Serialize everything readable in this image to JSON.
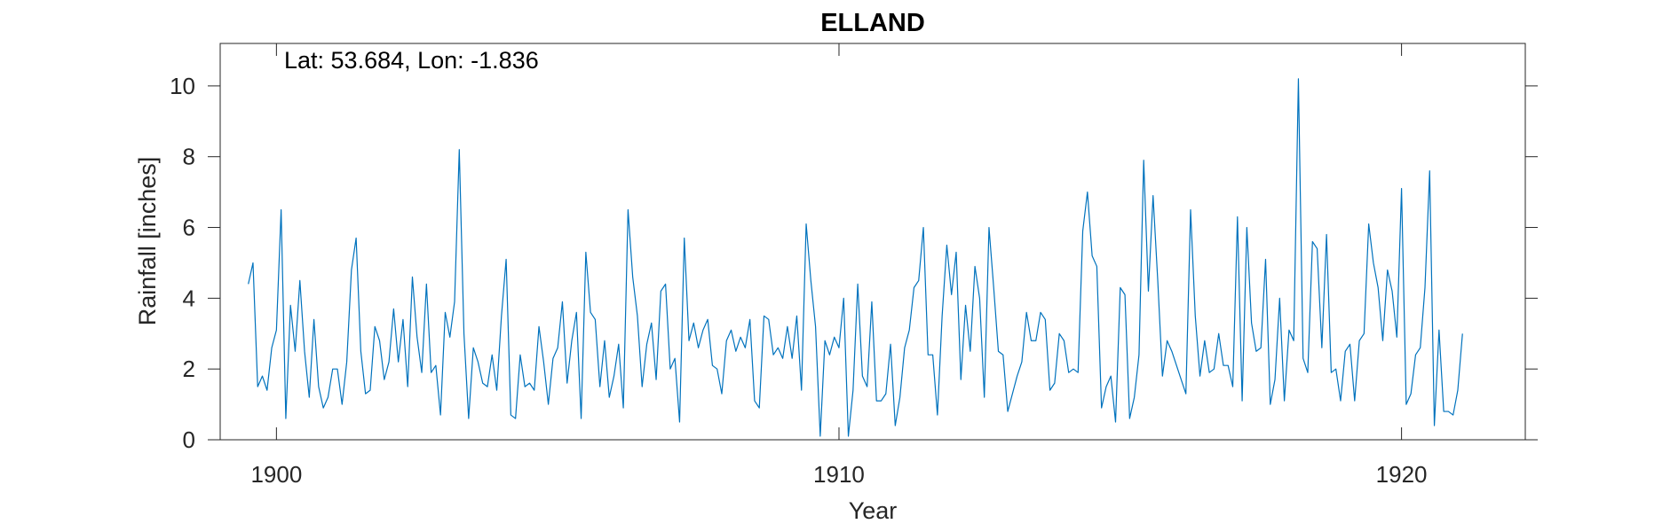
{
  "chart_data": {
    "type": "line",
    "title": "ELLAND",
    "annotation": "Lat: 53.684, Lon: -1.836",
    "xlabel": "Year",
    "ylabel": "Rainfall [inches]",
    "xlim": [
      1899,
      1922.2
    ],
    "ylim": [
      0,
      11.2
    ],
    "xticks": [
      1900,
      1910,
      1920
    ],
    "yticks": [
      0,
      2,
      4,
      6,
      8,
      10
    ],
    "grid": false,
    "line_color": "#0072BD",
    "series": [
      {
        "x_start": 1899.5,
        "x_step": 0.0833333,
        "values": [
          4.4,
          5.0,
          1.5,
          1.8,
          1.4,
          2.6,
          3.1,
          6.5,
          0.6,
          3.8,
          2.5,
          4.5,
          2.5,
          1.2,
          3.4,
          1.5,
          0.9,
          1.2,
          2.0,
          2.0,
          1.0,
          2.2,
          4.8,
          5.7,
          2.5,
          1.3,
          1.4,
          3.2,
          2.8,
          1.7,
          2.2,
          3.7,
          2.2,
          3.4,
          1.5,
          4.6,
          2.9,
          1.9,
          4.4,
          1.9,
          2.1,
          0.7,
          3.6,
          2.9,
          3.9,
          8.2,
          3.0,
          0.6,
          2.6,
          2.2,
          1.6,
          1.5,
          2.4,
          1.4,
          3.5,
          5.1,
          0.7,
          0.6,
          2.4,
          1.5,
          1.6,
          1.4,
          3.2,
          2.2,
          1.0,
          2.3,
          2.6,
          3.9,
          1.6,
          2.8,
          3.6,
          0.6,
          5.3,
          3.6,
          3.4,
          1.5,
          2.8,
          1.2,
          1.8,
          2.7,
          0.9,
          6.5,
          4.6,
          3.5,
          1.5,
          2.7,
          3.3,
          1.7,
          4.2,
          4.4,
          2.0,
          2.3,
          0.5,
          5.7,
          2.8,
          3.3,
          2.6,
          3.1,
          3.4,
          2.1,
          2.0,
          1.3,
          2.8,
          3.1,
          2.5,
          2.9,
          2.6,
          3.4,
          1.1,
          0.9,
          3.5,
          3.4,
          2.4,
          2.6,
          2.3,
          3.2,
          2.3,
          3.5,
          1.4,
          6.1,
          4.5,
          3.2,
          0.1,
          2.8,
          2.4,
          2.9,
          2.6,
          4.0,
          0.1,
          1.4,
          4.4,
          1.8,
          1.5,
          3.9,
          1.1,
          1.1,
          1.3,
          2.7,
          0.4,
          1.2,
          2.6,
          3.1,
          4.3,
          4.5,
          6.0,
          2.4,
          2.4,
          0.7,
          3.5,
          5.5,
          4.1,
          5.3,
          1.7,
          3.8,
          2.5,
          4.9,
          4.0,
          1.2,
          6.0,
          4.3,
          2.5,
          2.4,
          0.8,
          1.3,
          1.8,
          2.2,
          3.6,
          2.8,
          2.8,
          3.6,
          3.4,
          1.4,
          1.6,
          3.0,
          2.8,
          1.9,
          2.0,
          1.9,
          5.9,
          7.0,
          5.2,
          4.9,
          0.9,
          1.5,
          1.8,
          0.5,
          4.3,
          4.1,
          0.6,
          1.2,
          2.4,
          7.9,
          4.2,
          6.9,
          4.5,
          1.8,
          2.8,
          2.5,
          2.1,
          1.7,
          1.3,
          6.5,
          3.5,
          1.8,
          2.8,
          1.9,
          2.0,
          3.0,
          2.1,
          2.1,
          1.5,
          6.3,
          1.1,
          6.0,
          3.3,
          2.5,
          2.6,
          5.1,
          1.0,
          1.7,
          4.0,
          1.1,
          3.1,
          2.8,
          10.2,
          2.3,
          1.9,
          5.6,
          5.4,
          2.6,
          5.8,
          1.9,
          2.0,
          1.1,
          2.5,
          2.7,
          1.1,
          2.8,
          3.0,
          6.1,
          5.0,
          4.3,
          2.8,
          4.8,
          4.2,
          2.9,
          7.1,
          1.0,
          1.3,
          2.4,
          2.6,
          4.3,
          7.6,
          0.4,
          3.1,
          0.8,
          0.8,
          0.7,
          1.4,
          3.0
        ]
      }
    ]
  }
}
